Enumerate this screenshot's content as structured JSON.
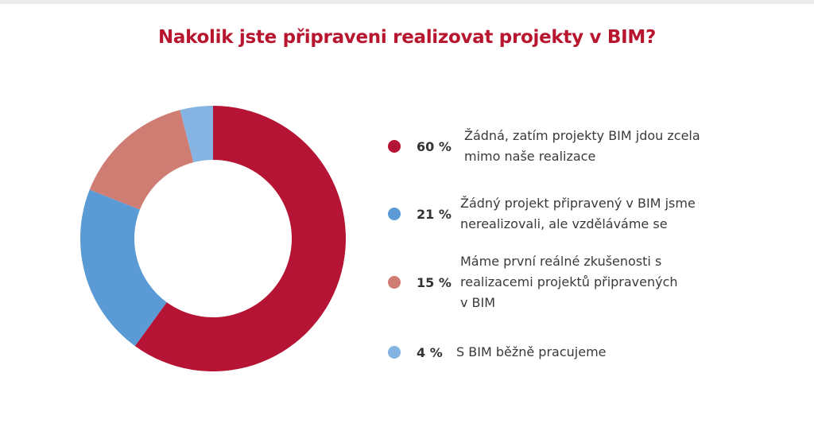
{
  "chart_data": {
    "type": "pie",
    "donut": true,
    "title": "Nakolik jste připraveni realizovat projekty v BIM?",
    "legend_position": "right",
    "slices": [
      {
        "pct_label": "60 %",
        "value": 60,
        "label": "Žádná, zatím projekty BIM jdou zcela mimo naše realizace",
        "color": "#b51434"
      },
      {
        "pct_label": "21 %",
        "value": 21,
        "label": "Žádný projekt připravený v BIM jsme nerealizovali, ale vzděláváme se",
        "color": "#5b9bd5"
      },
      {
        "pct_label": "15 %",
        "value": 15,
        "label": "Máme první reálné zkušenosti s realizacemi projektů připravených v BIM",
        "color": "#cf7c72"
      },
      {
        "pct_label": "4 %",
        "value": 4,
        "label": "S BIM běžně pracujeme",
        "color": "#85b4e2"
      }
    ]
  }
}
